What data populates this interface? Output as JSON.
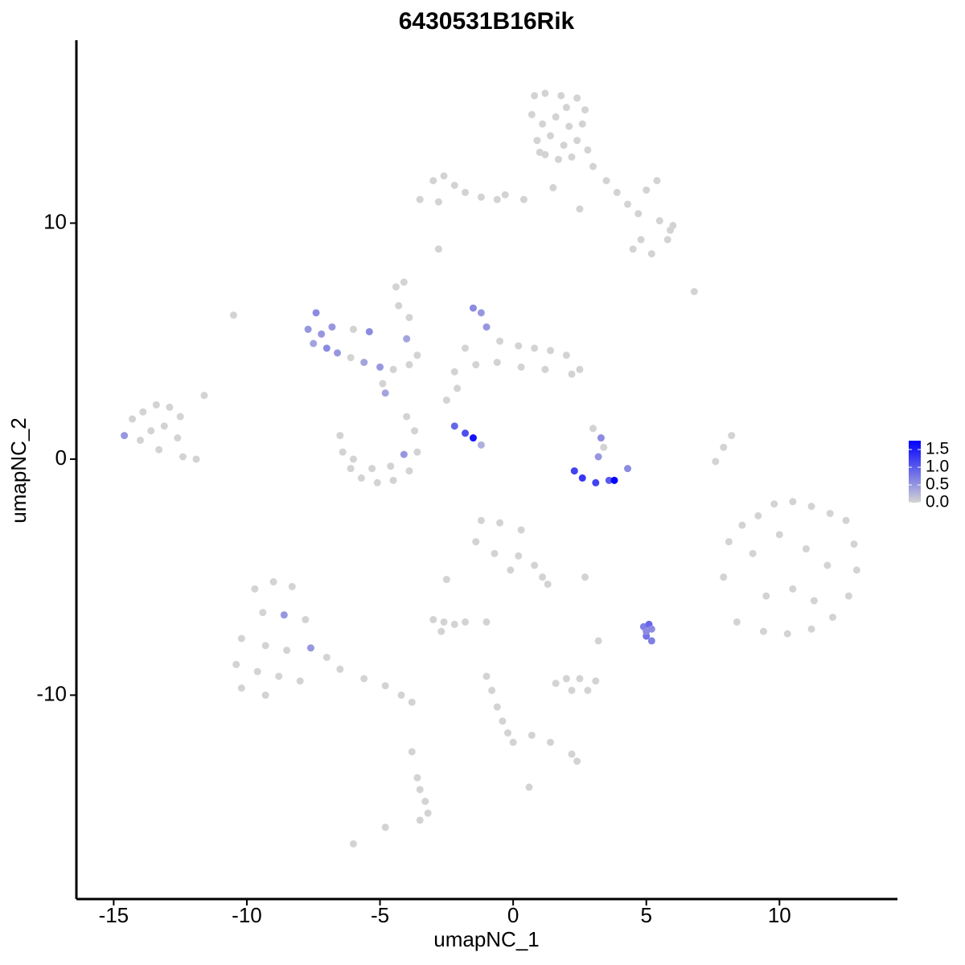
{
  "chart_data": {
    "type": "scatter",
    "title": "6430531B16Rik",
    "x_label": "umapNC_1",
    "y_label": "umapNC_2",
    "xlim": [
      -16.4,
      14.43
    ],
    "ylim": [
      -18.64,
      17.75
    ],
    "xticks": [
      -15,
      -10,
      -5,
      0,
      5,
      10
    ],
    "yticks": [
      -10,
      0,
      10
    ],
    "grid": false,
    "colors": [
      "#d3d3d3",
      "#0000ff"
    ],
    "color_lim": [
      0,
      1.75
    ],
    "color_ticks": [
      {
        "value": 0,
        "label": "0.0"
      },
      {
        "value": 0.5,
        "label": "0.5"
      },
      {
        "value": 1,
        "label": "1.0"
      },
      {
        "value": 1.5,
        "label": "1.5"
      }
    ],
    "x": [
      0.8,
      1.2,
      1.8,
      2.4,
      2.7,
      0.7,
      1.1,
      1.6,
      2.1,
      2.6,
      0.9,
      1.4,
      1.9,
      2.4,
      1.2,
      1.7,
      2.2,
      2.8,
      1.0,
      2.0,
      3.0,
      3.5,
      3.9,
      4.3,
      4.7,
      5.0,
      5.4,
      5.5,
      5.9,
      5.8,
      6.0,
      4.8,
      4.5,
      5.2,
      0.4,
      -0.3,
      1.5,
      2.5,
      -3.5,
      -3.0,
      -2.6,
      -2.2,
      -1.8,
      -1.2,
      -2.8,
      -0.6,
      -2.8,
      -10.5,
      6.8,
      -4.4,
      -14.6,
      -14.3,
      -13.9,
      -13.4,
      -12.9,
      -12.5,
      -14.0,
      -13.6,
      -13.1,
      -12.6,
      -13.3,
      -12.4,
      -11.9,
      -11.6,
      -7.7,
      -7.4,
      -7.2,
      -7.5,
      -7.0,
      -6.6,
      -6.1,
      -5.6,
      -5.0,
      -4.5,
      -3.9,
      -3.6,
      -5.4,
      -6.0,
      -6.8,
      -4.0,
      -4.3,
      -4.1,
      -3.9,
      -6.5,
      -6.4,
      -6.1,
      -5.7,
      -5.1,
      -4.5,
      -3.9,
      -3.6,
      -3.7,
      -4.0,
      -6.0,
      -5.3,
      -4.6,
      -4.1,
      -4.8,
      -4.9,
      -1.5,
      -1.2,
      -1.0,
      -0.5,
      0.2,
      0.8,
      1.4,
      2.0,
      2.5,
      2.2,
      1.2,
      0.3,
      -0.6,
      -1.4,
      -2.2,
      -1.8,
      -2.5,
      -2.1,
      3.0,
      3.3,
      3.4,
      3.2,
      2.3,
      2.6,
      3.1,
      3.6,
      3.8,
      4.3,
      7.6,
      7.9,
      8.2,
      -2.2,
      -1.8,
      -1.5,
      -1.2,
      8.1,
      8.6,
      9.2,
      9.8,
      10.5,
      11.2,
      11.9,
      12.5,
      12.8,
      12.9,
      12.6,
      12.0,
      11.2,
      10.3,
      9.4,
      8.4,
      7.9,
      9.0,
      10.0,
      11.0,
      11.8,
      10.5,
      9.5,
      11.3,
      -1.2,
      -0.5,
      0.3,
      -1.4,
      -0.7,
      0.2,
      0.8,
      1.1,
      1.3,
      -0.1,
      -9.7,
      -9.0,
      -8.3,
      -9.4,
      -8.6,
      -7.8,
      -10.2,
      -9.3,
      -8.5,
      -7.6,
      -7.0,
      -10.4,
      -9.6,
      -8.8,
      -8.0,
      -10.2,
      -9.3,
      -6.5,
      -5.6,
      -4.8,
      -4.2,
      -3.8,
      -3.0,
      -2.6,
      -2.2,
      -1.8,
      -2.7,
      -1.0,
      -2.5,
      2.7,
      3.2,
      1.6,
      2.0,
      2.5,
      3.1,
      2.2,
      2.8,
      -1.0,
      -0.8,
      -0.6,
      -0.4,
      -0.2,
      0.0,
      0.7,
      1.4,
      2.2,
      2.4,
      -3.6,
      -3.5,
      -3.3,
      -3.2,
      -3.5,
      -3.8,
      -6.0,
      -4.8,
      0.6,
      4.9,
      5.1,
      5.2,
      5.0,
      5.2,
      5.0
    ],
    "y": [
      15.4,
      15.5,
      15.4,
      15.3,
      14.8,
      14.6,
      14.2,
      14.5,
      14.1,
      14.2,
      13.5,
      13.7,
      13.3,
      13.5,
      12.9,
      12.7,
      12.8,
      13.1,
      13.0,
      14.9,
      12.4,
      11.8,
      11.3,
      10.8,
      10.4,
      11.4,
      11.8,
      10.1,
      9.7,
      9.3,
      9.9,
      9.3,
      8.9,
      8.7,
      11.0,
      11.2,
      11.5,
      10.6,
      11.0,
      11.8,
      12.0,
      11.6,
      11.3,
      11.1,
      10.9,
      11.0,
      8.9,
      6.1,
      7.1,
      7.3,
      1.0,
      1.7,
      2.0,
      2.3,
      2.2,
      1.8,
      0.8,
      1.2,
      1.4,
      0.9,
      0.4,
      0.1,
      0.0,
      2.7,
      5.5,
      6.2,
      5.3,
      4.9,
      4.7,
      4.5,
      4.3,
      4.1,
      3.9,
      3.8,
      4.0,
      4.4,
      5.4,
      5.5,
      5.6,
      5.1,
      6.5,
      7.5,
      6.0,
      1.0,
      0.3,
      -0.4,
      -0.8,
      -1.0,
      -0.9,
      -0.5,
      0.3,
      1.2,
      1.8,
      0.0,
      -0.4,
      -0.3,
      0.2,
      2.8,
      3.2,
      6.4,
      6.2,
      5.6,
      5.0,
      4.8,
      4.7,
      4.6,
      4.4,
      3.8,
      3.6,
      3.8,
      3.9,
      4.1,
      4.0,
      3.7,
      4.7,
      2.5,
      3.0,
      1.3,
      0.9,
      0.5,
      0.1,
      -0.5,
      -0.8,
      -1.0,
      -0.9,
      -0.9,
      -0.4,
      -0.1,
      0.5,
      1.0,
      1.4,
      1.1,
      0.9,
      0.6,
      -3.5,
      -2.8,
      -2.4,
      -1.9,
      -1.8,
      -2.0,
      -2.3,
      -2.6,
      -3.6,
      -4.7,
      -5.8,
      -6.7,
      -7.2,
      -7.4,
      -7.3,
      -6.9,
      -5.0,
      -4.0,
      -3.2,
      -3.8,
      -4.5,
      -5.5,
      -5.8,
      -6.0,
      -2.6,
      -2.7,
      -3.0,
      -3.5,
      -4.0,
      -4.1,
      -4.5,
      -5.0,
      -5.3,
      -4.7,
      -5.5,
      -5.2,
      -5.4,
      -6.5,
      -6.6,
      -6.8,
      -7.6,
      -7.9,
      -8.1,
      -8.0,
      -8.4,
      -8.7,
      -9.0,
      -9.2,
      -9.4,
      -9.7,
      -10.0,
      -8.9,
      -9.3,
      -9.6,
      -10.0,
      -10.3,
      -6.8,
      -6.9,
      -7.0,
      -6.9,
      -7.3,
      -6.9,
      -5.1,
      -5.0,
      -7.7,
      -9.5,
      -9.3,
      -9.3,
      -9.4,
      -9.8,
      -9.8,
      -9.2,
      -9.8,
      -10.5,
      -11.1,
      -11.6,
      -12.0,
      -11.7,
      -12.0,
      -12.5,
      -12.8,
      -13.5,
      -14.0,
      -14.5,
      -15.0,
      -15.3,
      -12.4,
      -16.3,
      -15.6,
      -13.9,
      -7.1,
      -7.0,
      -7.2,
      -7.5,
      -7.7,
      -7.3
    ],
    "values": [
      0,
      0,
      0,
      0,
      0,
      0,
      0,
      0,
      0,
      0,
      0,
      0,
      0,
      0,
      0,
      0,
      0,
      0,
      0,
      0,
      0,
      0,
      0,
      0,
      0,
      0,
      0,
      0,
      0,
      0,
      0,
      0,
      0,
      0,
      0,
      0,
      0,
      0,
      0,
      0,
      0,
      0,
      0,
      0,
      0,
      0,
      0,
      0,
      0,
      0,
      0.5,
      0,
      0,
      0,
      0,
      0,
      0,
      0,
      0,
      0,
      0,
      0,
      0,
      0,
      0.5,
      0.6,
      0.5,
      0.4,
      0.6,
      0.5,
      0,
      0.4,
      0.5,
      0,
      0,
      0,
      0.6,
      0,
      0.5,
      0.4,
      0,
      0,
      0,
      0,
      0,
      0,
      0,
      0,
      0,
      0,
      0,
      0,
      0,
      0,
      0,
      0,
      0.5,
      0.4,
      0,
      0.6,
      0.5,
      0.5,
      0,
      0,
      0,
      0,
      0,
      0,
      0,
      0,
      0,
      0,
      0,
      0,
      0,
      0,
      0,
      0,
      0.6,
      0,
      0.5,
      1.2,
      1.3,
      1.2,
      1.0,
      1.7,
      0.6,
      0,
      0,
      0,
      0.9,
      1.1,
      1.6,
      0.3,
      0,
      0,
      0,
      0,
      0,
      0,
      0,
      0,
      0,
      0,
      0,
      0,
      0,
      0,
      0,
      0,
      0,
      0,
      0,
      0,
      0,
      0,
      0,
      0,
      0,
      0,
      0,
      0,
      0,
      0,
      0,
      0,
      0,
      0,
      0,
      0,
      0,
      0,
      0.5,
      0,
      0,
      0,
      0,
      0.5,
      0,
      0,
      0,
      0,
      0,
      0,
      0,
      0,
      0,
      0,
      0,
      0,
      0,
      0,
      0,
      0,
      0,
      0,
      0,
      0,
      0,
      0,
      0,
      0,
      0,
      0,
      0,
      0,
      0,
      0,
      0,
      0,
      0,
      0,
      0,
      0,
      0,
      0,
      0,
      0,
      0,
      0,
      0,
      0,
      0,
      0,
      0.7,
      0.9,
      0.6,
      0.8,
      0.7,
      0.6
    ]
  }
}
